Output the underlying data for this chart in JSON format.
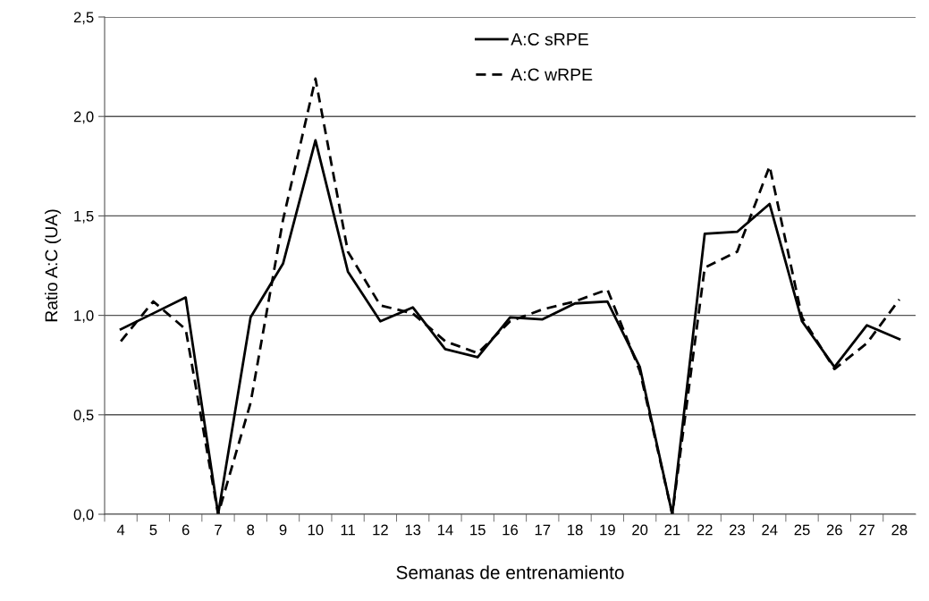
{
  "chart_data": {
    "type": "line",
    "xlabel": "Semanas de entrenamiento",
    "ylabel": "Ratio A:C (UA)",
    "categories": [
      "4",
      "5",
      "6",
      "7",
      "8",
      "9",
      "10",
      "11",
      "12",
      "13",
      "14",
      "15",
      "16",
      "17",
      "18",
      "19",
      "20",
      "21",
      "22",
      "23",
      "24",
      "25",
      "26",
      "27",
      "28"
    ],
    "series": [
      {
        "name": "A:C sRPE",
        "color": "#000000",
        "line_style": "solid",
        "values": [
          0.93,
          1.01,
          1.09,
          0,
          0.99,
          1.26,
          1.88,
          1.22,
          0.97,
          1.04,
          0.83,
          0.79,
          0.99,
          0.98,
          1.06,
          1.07,
          0.74,
          0,
          1.41,
          1.42,
          1.56,
          0.97,
          0.74,
          0.95,
          0.88
        ]
      },
      {
        "name": "A:C wRPE",
        "color": "#000000",
        "line_style": "dashed",
        "values": [
          0.87,
          1.07,
          0.93,
          0,
          0.56,
          1.48,
          2.19,
          1.32,
          1.05,
          1.01,
          0.87,
          0.81,
          0.97,
          1.03,
          1.07,
          1.13,
          0.72,
          0,
          1.24,
          1.32,
          1.75,
          0.99,
          0.73,
          0.86,
          1.08
        ]
      }
    ],
    "ylim": [
      0,
      2.5
    ],
    "yticks": [
      {
        "value": 0,
        "label": "0,0"
      },
      {
        "value": 0.5,
        "label": "0,5"
      },
      {
        "value": 1,
        "label": "1,0"
      },
      {
        "value": 1.5,
        "label": "1,5"
      },
      {
        "value": 2,
        "label": "2,0"
      },
      {
        "value": 2.5,
        "label": "2,5"
      }
    ],
    "grid": "y",
    "legend": "top",
    "marker": "none"
  }
}
